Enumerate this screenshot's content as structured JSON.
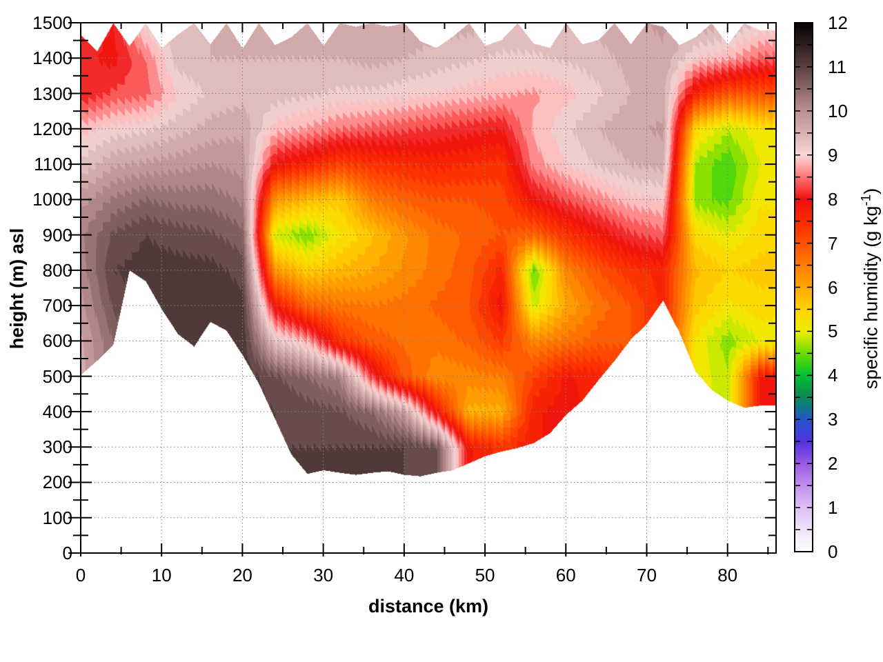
{
  "axes": {
    "x": {
      "label": "distance (km)",
      "min": 0,
      "max": 86,
      "major_ticks": [
        0,
        10,
        20,
        30,
        40,
        50,
        60,
        70,
        80
      ],
      "minor_step": 5
    },
    "y": {
      "label": "height (m) asl",
      "min": 0,
      "max": 1500,
      "major_ticks": [
        0,
        100,
        200,
        300,
        400,
        500,
        600,
        700,
        800,
        900,
        1000,
        1100,
        1200,
        1300,
        1400,
        1500
      ],
      "minor_step": 50
    }
  },
  "colorbar": {
    "min": 0,
    "max": 12,
    "ticks": [
      0,
      1,
      2,
      3,
      4,
      5,
      6,
      7,
      8,
      9,
      10,
      11,
      12
    ],
    "minor_step": 0.5,
    "label_prefix": "specific humidity (g kg",
    "label_sup": "-1",
    "label_suffix": ")"
  },
  "chart_data": {
    "type": "heatmap",
    "title": "",
    "xlabel": "distance (km)",
    "ylabel": "height (m) asl",
    "zlabel": "specific humidity (g kg^-1)",
    "x_range": [
      0,
      86
    ],
    "y_range": [
      0,
      1500
    ],
    "z_range": [
      0,
      12
    ],
    "grid_on": true,
    "grid_style": "dotted",
    "band_step": 0.25,
    "grid_x_km": [
      0,
      4,
      8,
      12,
      16,
      20,
      24,
      28,
      32,
      36,
      40,
      44,
      48,
      52,
      56,
      60,
      64,
      68,
      72,
      76,
      80,
      84
    ],
    "grid_y_m": [
      1500,
      1400,
      1300,
      1200,
      1100,
      1000,
      900,
      800,
      700,
      600,
      500,
      400,
      300,
      200
    ],
    "values": [
      [
        8.2,
        8.0,
        9.2,
        9.5,
        9.5,
        9.5,
        9.6,
        9.6,
        9.6,
        9.7,
        9.7,
        9.6,
        9.6,
        9.5,
        9.5,
        9.5,
        9.6,
        9.7,
        9.8,
        9.7,
        9.6,
        9.2
      ],
      [
        8.1,
        7.9,
        8.5,
        9.4,
        9.5,
        9.5,
        9.5,
        9.5,
        9.5,
        9.6,
        9.5,
        9.4,
        9.3,
        9.2,
        9.2,
        9.3,
        9.4,
        9.6,
        9.7,
        9.0,
        8.8,
        8.4
      ],
      [
        8.0,
        8.3,
        8.4,
        9.0,
        9.3,
        9.4,
        9.4,
        9.3,
        9.2,
        9.2,
        9.1,
        9.0,
        8.9,
        8.8,
        8.7,
        8.9,
        9.2,
        9.5,
        9.6,
        7.6,
        7.0,
        7.0
      ],
      [
        8.9,
        9.1,
        9.2,
        9.4,
        9.6,
        9.7,
        8.9,
        8.7,
        8.5,
        8.4,
        8.3,
        8.2,
        8.1,
        8.0,
        8.8,
        9.2,
        9.5,
        9.7,
        9.8,
        5.4,
        4.8,
        5.2
      ],
      [
        9.3,
        9.7,
        9.8,
        9.9,
        10.0,
        9.9,
        7.9,
        7.6,
        7.2,
        7.4,
        7.5,
        7.6,
        7.5,
        7.4,
        8.6,
        9.0,
        9.3,
        9.5,
        9.6,
        4.7,
        4.3,
        5.0
      ],
      [
        9.9,
        10.3,
        10.5,
        10.4,
        10.4,
        10.2,
        6.2,
        5.8,
        5.6,
        6.5,
        6.8,
        7.0,
        7.0,
        7.1,
        7.9,
        8.3,
        8.6,
        8.9,
        9.0,
        4.6,
        4.4,
        5.2
      ],
      [
        10.2,
        10.8,
        11.0,
        10.9,
        10.8,
        10.6,
        4.9,
        4.5,
        5.2,
        5.7,
        6.2,
        6.6,
        6.8,
        7.0,
        6.8,
        7.4,
        7.8,
        8.2,
        8.4,
        5.4,
        5.0,
        5.4
      ],
      [
        10.1,
        11.0,
        11.1,
        11.1,
        11.1,
        10.9,
        6.2,
        5.6,
        5.8,
        6.0,
        6.3,
        6.6,
        6.9,
        7.6,
        4.4,
        6.4,
        7.0,
        7.4,
        7.6,
        5.8,
        5.5,
        5.6
      ],
      [
        9.9,
        10.8,
        null,
        11.0,
        11.2,
        11.1,
        7.8,
        6.8,
        6.6,
        6.5,
        6.6,
        6.8,
        7.0,
        7.9,
        4.9,
        6.0,
        6.6,
        7.0,
        null,
        5.6,
        5.2,
        5.4
      ],
      [
        9.7,
        10.5,
        null,
        null,
        null,
        11.2,
        9.3,
        8.8,
        7.4,
        6.9,
        6.7,
        6.6,
        6.8,
        7.3,
        6.4,
        6.6,
        6.9,
        null,
        null,
        5.2,
        4.6,
        5.0
      ],
      [
        9.6,
        null,
        null,
        null,
        null,
        null,
        10.8,
        10.5,
        10.2,
        8.2,
        6.9,
        6.3,
        6.4,
        6.5,
        7.2,
        7.8,
        7.6,
        null,
        null,
        null,
        4.8,
        7.8
      ],
      [
        null,
        null,
        null,
        null,
        null,
        null,
        11.0,
        10.9,
        10.8,
        10.5,
        9.8,
        7.8,
        5.9,
        5.9,
        7.7,
        7.9,
        null,
        null,
        null,
        null,
        null,
        null
      ],
      [
        null,
        null,
        null,
        null,
        null,
        null,
        null,
        11.0,
        11.0,
        11.0,
        11.0,
        10.8,
        7.8,
        7.4,
        null,
        null,
        null,
        null,
        null,
        null,
        null,
        null
      ],
      [
        null,
        null,
        null,
        null,
        null,
        null,
        null,
        null,
        null,
        null,
        null,
        null,
        null,
        null,
        null,
        null,
        null,
        null,
        null,
        null,
        null,
        null
      ]
    ],
    "terrain_km": [
      0,
      2,
      4,
      6,
      8,
      10,
      12,
      14,
      16,
      18,
      20,
      22,
      24,
      26,
      28,
      30,
      32,
      34,
      36,
      38,
      40,
      42,
      44,
      46,
      48,
      50,
      52,
      54,
      56,
      58,
      60,
      62,
      64,
      66,
      68,
      70,
      72,
      74,
      76,
      78,
      80,
      82,
      84
    ],
    "terrain_m": [
      505,
      545,
      590,
      800,
      770,
      690,
      620,
      585,
      655,
      630,
      560,
      480,
      380,
      280,
      225,
      235,
      228,
      222,
      228,
      232,
      222,
      218,
      228,
      235,
      255,
      275,
      288,
      298,
      312,
      340,
      392,
      432,
      490,
      545,
      605,
      650,
      715,
      625,
      515,
      462,
      432,
      412,
      418
    ],
    "top_boundary_m": [
      1465,
      1420,
      1500,
      1435,
      1500,
      1430,
      1468,
      1500,
      1440,
      1500,
      1428,
      1500,
      1438,
      1460,
      1500,
      1436,
      1500,
      1490,
      1500,
      1490,
      1500,
      1448,
      1430,
      1462,
      1500,
      1436,
      1452,
      1500,
      1442,
      1430,
      1500,
      1440,
      1452,
      1500,
      1440,
      1500,
      1490,
      1438,
      1460,
      1500,
      1440,
      1500,
      1480
    ],
    "palette_stops": [
      [
        0,
        "#ffffff"
      ],
      [
        0.5,
        "#efe3fa"
      ],
      [
        1,
        "#dcc0f5"
      ],
      [
        1.5,
        "#c190ee"
      ],
      [
        2,
        "#9a58e6"
      ],
      [
        2.5,
        "#5232e0"
      ],
      [
        3,
        "#2256cc"
      ],
      [
        3.3,
        "#0f7a80"
      ],
      [
        3.6,
        "#0c9148"
      ],
      [
        4,
        "#00c233"
      ],
      [
        4.5,
        "#6ade00"
      ],
      [
        5,
        "#eded00"
      ],
      [
        5.5,
        "#ffd400"
      ],
      [
        6,
        "#ffa800"
      ],
      [
        6.5,
        "#ff7d00"
      ],
      [
        7,
        "#ff5100"
      ],
      [
        7.5,
        "#fb2900"
      ],
      [
        8,
        "#ee1010"
      ],
      [
        8.5,
        "#ff7373"
      ],
      [
        8.8,
        "#ffb0b0"
      ],
      [
        9,
        "#f8d8d8"
      ],
      [
        9.5,
        "#d9b2b2"
      ],
      [
        10,
        "#bd9090"
      ],
      [
        10.5,
        "#8d6969"
      ],
      [
        11,
        "#5c4242"
      ],
      [
        11.5,
        "#2e1f1f"
      ],
      [
        12,
        "#0a0404"
      ]
    ],
    "colors": {
      "grid_line": "#808080",
      "border": "#000000",
      "background": "#ffffff"
    }
  }
}
